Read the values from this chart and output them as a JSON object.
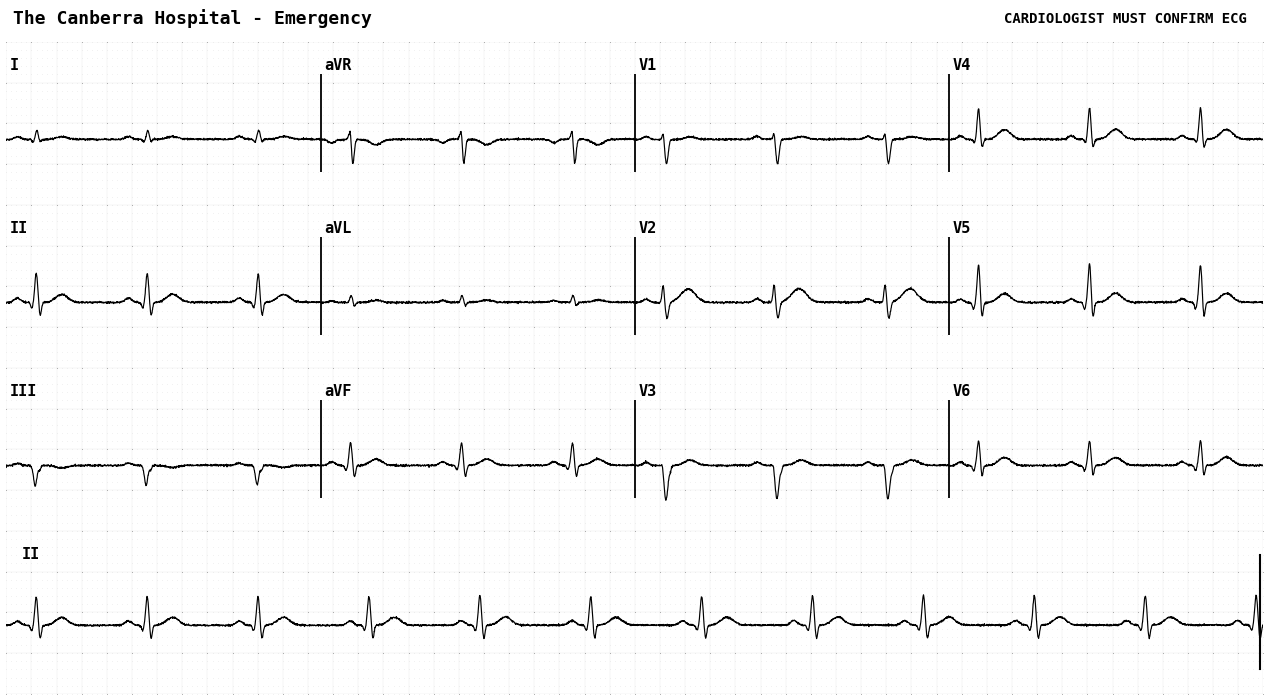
{
  "title_left": "The Canberra Hospital - Emergency",
  "title_right": "CARDIOLOGIST MUST CONFIRM ECG",
  "bg_color": "#ffffff",
  "dot_minor_color": "#aaaaaa",
  "dot_major_color": "#888888",
  "ecg_color": "#000000",
  "lead_rows": [
    [
      "I",
      "aVR",
      "V1",
      "V4"
    ],
    [
      "II",
      "aVL",
      "V2",
      "V5"
    ],
    [
      "III",
      "aVF",
      "V3",
      "V6"
    ],
    [
      "II"
    ]
  ],
  "hr_bpm": 68,
  "fs": 500,
  "title_fontsize": 13,
  "label_fontsize": 11,
  "fig_width": 12.66,
  "fig_height": 6.96,
  "dpi": 100
}
